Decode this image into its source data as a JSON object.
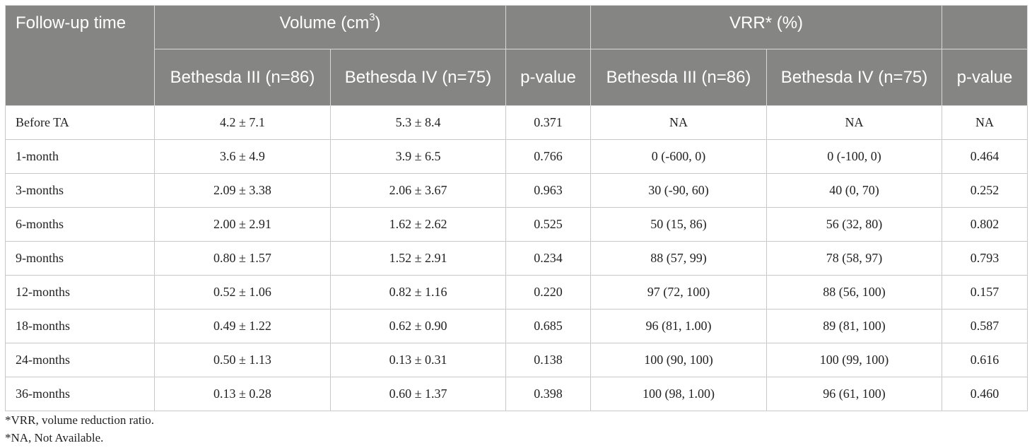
{
  "header": {
    "followup": "Follow-up time",
    "volume_main": "Volume (cm",
    "volume_sup": "3",
    "volume_close": ")",
    "vrr": "VRR* (%)",
    "bethesda3": "Bethesda III (n=86)",
    "bethesda4": "Bethesda IV (n=75)",
    "pvalue": "p-value"
  },
  "rows": [
    {
      "time": "Before TA",
      "vol3": "4.2 ± 7.1",
      "vol4": "5.3 ± 8.4",
      "p1": "0.371",
      "vrr3": "NA",
      "vrr4": "NA",
      "p2": "NA"
    },
    {
      "time": "1-month",
      "vol3": "3.6 ± 4.9",
      "vol4": "3.9 ± 6.5",
      "p1": "0.766",
      "vrr3": "0 (-600, 0)",
      "vrr4": "0 (-100, 0)",
      "p2": "0.464"
    },
    {
      "time": "3-months",
      "vol3": "2.09 ± 3.38",
      "vol4": "2.06 ± 3.67",
      "p1": "0.963",
      "vrr3": "30 (-90, 60)",
      "vrr4": "40 (0, 70)",
      "p2": "0.252"
    },
    {
      "time": "6-months",
      "vol3": "2.00 ± 2.91",
      "vol4": "1.62 ± 2.62",
      "p1": "0.525",
      "vrr3": "50 (15, 86)",
      "vrr4": "56 (32, 80)",
      "p2": "0.802"
    },
    {
      "time": "9-months",
      "vol3": "0.80 ± 1.57",
      "vol4": "1.52 ± 2.91",
      "p1": "0.234",
      "vrr3": "88 (57, 99)",
      "vrr4": "78 (58, 97)",
      "p2": "0.793"
    },
    {
      "time": "12-months",
      "vol3": "0.52 ± 1.06",
      "vol4": "0.82 ± 1.16",
      "p1": "0.220",
      "vrr3": "97 (72, 100)",
      "vrr4": "88 (56, 100)",
      "p2": "0.157"
    },
    {
      "time": "18-months",
      "vol3": "0.49 ± 1.22",
      "vol4": "0.62 ± 0.90",
      "p1": "0.685",
      "vrr3": "96 (81, 1.00)",
      "vrr4": "89 (81, 100)",
      "p2": "0.587"
    },
    {
      "time": "24-months",
      "vol3": "0.50 ± 1.13",
      "vol4": "0.13 ± 0.31",
      "p1": "0.138",
      "vrr3": "100 (90, 100)",
      "vrr4": "100 (99, 100)",
      "p2": "0.616"
    },
    {
      "time": "36-months",
      "vol3": "0.13 ± 0.28",
      "vol4": "0.60 ± 1.37",
      "p1": "0.398",
      "vrr3": "100 (98, 1.00)",
      "vrr4": "96 (61, 100)",
      "p2": "0.460"
    }
  ],
  "notes": [
    "*VRR, volume reduction ratio.",
    "*NA, Not Available."
  ]
}
